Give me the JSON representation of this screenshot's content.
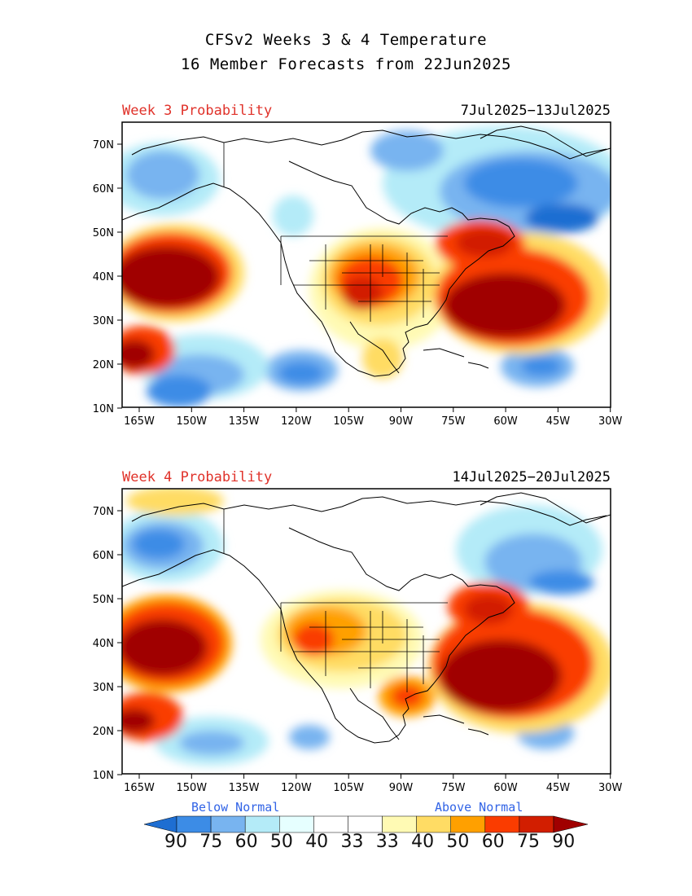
{
  "title_line1": "CFSv2 Weeks 3 & 4 Temperature",
  "title_line2": "16 Member Forecasts from 22Jun2025",
  "panels": [
    {
      "label": "Week 3 Probability",
      "dates": "7Jul2025−13Jul2025"
    },
    {
      "label": "Week 4 Probability",
      "dates": "14Jul2025−20Jul2025"
    }
  ],
  "lat_ticks": [
    "70N",
    "60N",
    "50N",
    "40N",
    "30N",
    "20N",
    "10N"
  ],
  "lon_ticks": [
    "165W",
    "150W",
    "135W",
    "120W",
    "105W",
    "90W",
    "75W",
    "60W",
    "45W",
    "30W"
  ],
  "legend": {
    "below_label": "Below Normal",
    "above_label": "Above Normal",
    "values": [
      "90",
      "75",
      "60",
      "50",
      "40",
      "33",
      "33",
      "40",
      "50",
      "60",
      "75",
      "90"
    ],
    "colors": [
      "#1e6ed2",
      "#3c8ce6",
      "#78b4f0",
      "#b4ebf8",
      "#e6ffff",
      "#ffffff",
      "#ffffff",
      "#fffab4",
      "#ffdc64",
      "#ffa000",
      "#fa3c00",
      "#d21e00",
      "#a00000"
    ]
  }
}
